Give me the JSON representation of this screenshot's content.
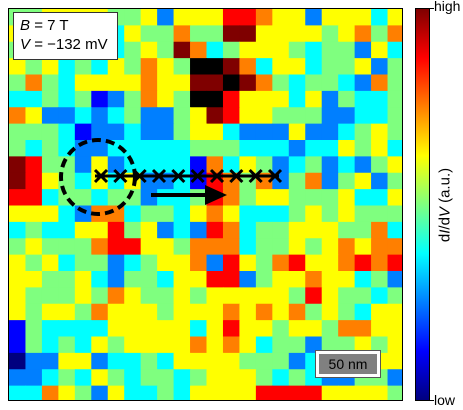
{
  "field_label": "B",
  "field_value": "= 7 T",
  "voltage_label": "V",
  "voltage_value": "= −132 mV",
  "scale_bar": "50 nm",
  "colorbar": {
    "high": "high",
    "low": "low",
    "axis_prefix": "d",
    "axis_I": "I",
    "axis_slash": "/d",
    "axis_V": "V",
    "axis_unit": " (a.u.)",
    "colors": [
      "#00007f",
      "#0000ff",
      "#007fff",
      "#00ffff",
      "#7fff7f",
      "#ffff00",
      "#ff7f00",
      "#ff0000",
      "#7f0000"
    ]
  },
  "grid": [
    "445555445255577655255535",
    "546564354464488555545646",
    "452535345486345554344253",
    "545343546549986355344524",
    "464355556558898643443264",
    "334341246549975553524334",
    "652232342245875544422334",
    "444312232245532225223454",
    "434322333334443332335453",
    "874425233331635423423245",
    "875435352231764624624524",
    "773443442334764554445335",
    "555326634435653334545444",
    "343355745232763445554463",
    "454446775546663445456566",
    "545344234556275467556767",
    "554453244355772455655342",
    "544454654454555554754434",
    "545546555455565656454355",
    "143333555553575545546655",
    "143435455556565344244545",
    "022552334355554442343455",
    "223435434434555434322442",
    "336542533435555777755554"
  ],
  "markers": {
    "count": 10,
    "marker_glyph": "x"
  },
  "annotations": {
    "circle": "dashed-circle",
    "arrow": "right-arrow"
  }
}
